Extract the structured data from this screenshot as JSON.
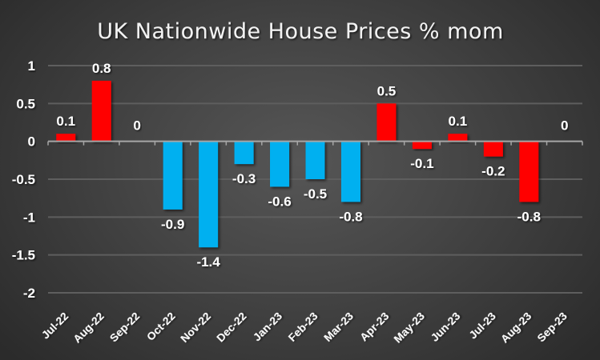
{
  "chart_data": {
    "type": "bar",
    "title": "UK Nationwide House Prices % mom",
    "xlabel": "",
    "ylabel": "",
    "categories": [
      "Jul-22",
      "Aug-22",
      "Sep-22",
      "Oct-22",
      "Nov-22",
      "Dec-22",
      "Jan-23",
      "Feb-23",
      "Mar-23",
      "Apr-23",
      "May-23",
      "Jun-23",
      "Jul-23",
      "Aug-23",
      "Sep-23"
    ],
    "values": [
      0.1,
      0.8,
      0,
      -0.9,
      -1.4,
      -0.3,
      -0.6,
      -0.5,
      -0.8,
      0.5,
      -0.1,
      0.1,
      -0.2,
      -0.8,
      0
    ],
    "data_labels": [
      "0.1",
      "0.8",
      "0",
      "-0.9",
      "-1.4",
      "-0.3",
      "-0.6",
      "-0.5",
      "-0.8",
      "0.5",
      "-0.1",
      "0.1",
      "-0.2",
      "-0.8",
      "0"
    ],
    "bar_colors": [
      "#ff0000",
      "#ff0000",
      "#ff0000",
      "#00b0f0",
      "#00b0f0",
      "#00b0f0",
      "#00b0f0",
      "#00b0f0",
      "#00b0f0",
      "#ff0000",
      "#ff0000",
      "#ff0000",
      "#ff0000",
      "#ff0000",
      "#ff0000"
    ],
    "ylim": [
      -2,
      1
    ],
    "yticks": [
      1,
      0.5,
      0,
      -0.5,
      -1,
      -1.5,
      -2
    ],
    "ytick_labels": [
      "1",
      "0.5",
      "0",
      "-0.5",
      "-1",
      "-1.5",
      "-2"
    ],
    "grid": true,
    "legend": "none",
    "colors": {
      "positive_period": "#ff0000",
      "negative_period": "#00b0f0",
      "text": "#ffffff",
      "gridline": "#5e5e5e",
      "axis": "#a6a6a6"
    }
  }
}
